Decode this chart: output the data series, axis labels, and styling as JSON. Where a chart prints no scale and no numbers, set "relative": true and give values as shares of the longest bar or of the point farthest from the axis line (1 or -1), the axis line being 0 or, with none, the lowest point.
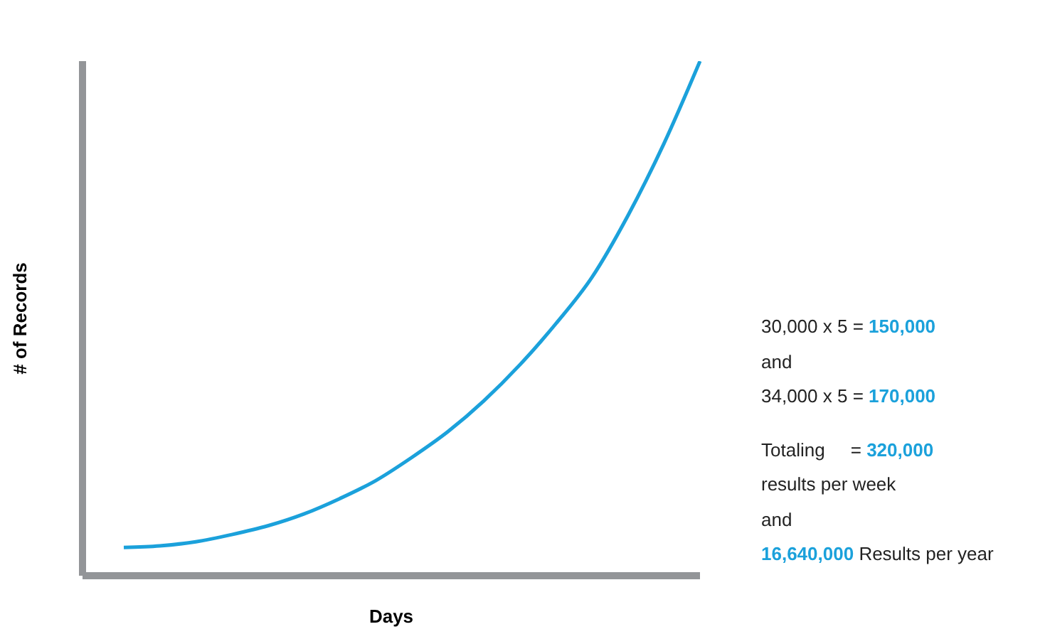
{
  "chart_data": {
    "type": "line",
    "relative": true,
    "xlabel": "Days",
    "ylabel": "# of Records",
    "categories": [
      null,
      null,
      null,
      null,
      null,
      null,
      null,
      null,
      null,
      null,
      null,
      null,
      null,
      null,
      null,
      null,
      null
    ],
    "series": [
      {
        "color": "#1ba1db",
        "values": [
          0.055,
          0.058,
          0.066,
          0.08,
          0.097,
          0.12,
          0.15,
          0.185,
          0.23,
          0.28,
          0.34,
          0.41,
          0.49,
          0.58,
          0.7,
          0.84,
          1
        ]
      }
    ],
    "marker": "none",
    "line_style": "solid",
    "grid": false,
    "legend": false,
    "annotations": [
      "30,000 x 5 = 150,000",
      "and",
      "34,000 x 5 = 170,000",
      "Totaling     = 320,000",
      "results per week",
      "and",
      "16,640,000 Results per year"
    ]
  }
}
